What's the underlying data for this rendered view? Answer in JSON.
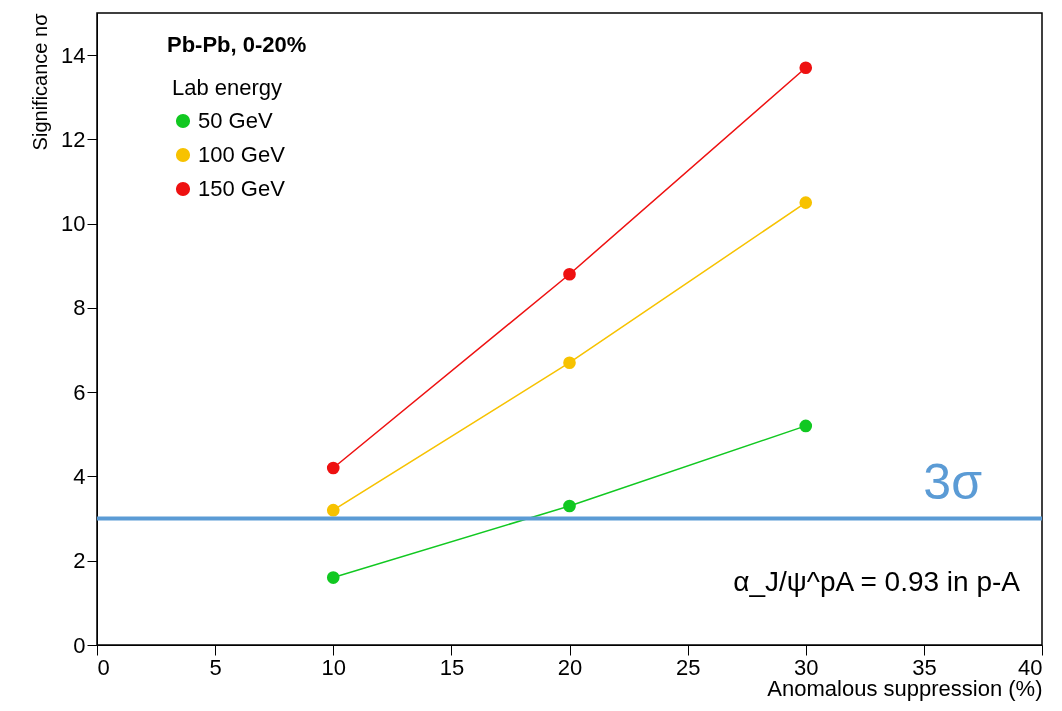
{
  "chart_data": {
    "type": "line",
    "xlabel": "Anomalous suppression (%)",
    "ylabel": "Significance nσ",
    "legend_title": "Lab energy",
    "x": [
      10,
      20,
      30
    ],
    "series": [
      {
        "name": "50 GeV",
        "color": "#11c821",
        "values": [
          1.6,
          3.3,
          5.2
        ]
      },
      {
        "name": "100 GeV",
        "color": "#f7c200",
        "values": [
          3.2,
          6.7,
          10.5
        ]
      },
      {
        "name": "150 GeV",
        "color": "#ee1111",
        "values": [
          4.2,
          8.8,
          13.7
        ]
      }
    ],
    "xlim": [
      0,
      40
    ],
    "xticks": [
      0,
      5,
      10,
      15,
      20,
      25,
      30,
      35,
      40
    ],
    "ylim": [
      0,
      15
    ],
    "yticks": [
      0,
      2,
      4,
      6,
      8,
      10,
      12,
      14
    ],
    "ref_lines": [
      {
        "axis": "y",
        "value": 3,
        "label": "3σ",
        "color": "#5b9bd5"
      }
    ],
    "annotations": [
      "Pb-Pb, 0-20%",
      "α_J/ψ^pA = 0.93 in p-A"
    ],
    "legend": "top left",
    "marker": "circle",
    "line_style": "solid",
    "grid": false
  }
}
